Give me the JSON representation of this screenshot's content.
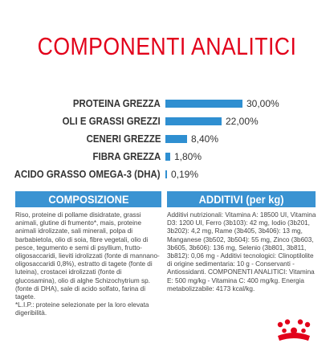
{
  "title": "COMPONENTI ANALITICI",
  "analysis": [
    {
      "label": "PROTEINA GREZZA",
      "value": 30.0,
      "value_label": "30,00%"
    },
    {
      "label": "OLI E GRASSI GREZZI",
      "value": 22.0,
      "value_label": "22,00%"
    },
    {
      "label": "CENERI GREZZE",
      "value": 8.4,
      "value_label": "8,40%"
    },
    {
      "label": "FIBRA GREZZA",
      "value": 1.8,
      "value_label": "1,80%"
    },
    {
      "label": "ACIDO GRASSO OMEGA-3 (DHA)",
      "value": 0.19,
      "value_label": "0,19%"
    }
  ],
  "composition": {
    "header": "COMPOSIZIONE",
    "text": "Riso, proteine di pollame disidratate, grassi animali, glutine di frumento*, mais, proteine animali idrolizzate, sali minerali, polpa di barbabietola, olio di soia, fibre vegetali, olio di pesce, tegumento e semi di psyllium, frutto-oligosaccaridi, lieviti idrolizzati (fonte di mannano-oligosaccaridi 0,8%), estratto di tagete (fonte di luteina), crostacei idrolizzati (fonte di glucosamina), olio di alghe Schizochytrium sp. (fonte di DHA), sale di acido solfato, farina di tagete.",
    "note": "*L.I.P.: proteine selezionate per la loro elevata digeribilità."
  },
  "additives": {
    "header": "ADDITIVI (per kg)",
    "text": "Additivi nutrizionali: Vitamina A: 18500 UI, Vitamina D3: 1200 UI, Ferro (3b103): 42 mg, Iodio (3b201, 3b202): 4,2 mg, Rame (3b405, 3b406): 13 mg, Manganese (3b502, 3b504): 55 mg, Zinco (3b603, 3b605, 3b606): 136 mg, Selenio (3b801, 3b811, 3b812): 0,06 mg - Additivi tecnologici: Clinoptilolite di origine sedimentaria: 10 g - Conservanti - Antiossidanti. COMPONENTI ANALITICI: Vitamina E: 500 mg/kg - Vitamina C: 400 mg/kg. Energia metabolizzabile: 4173 kcal/kg."
  },
  "colors": {
    "title": "#e2001a",
    "bar": "#2f8fd1",
    "header_bg": "#3a93d2",
    "crown": "#e2001a"
  },
  "logo_icon": "royal-canin-crown-icon"
}
